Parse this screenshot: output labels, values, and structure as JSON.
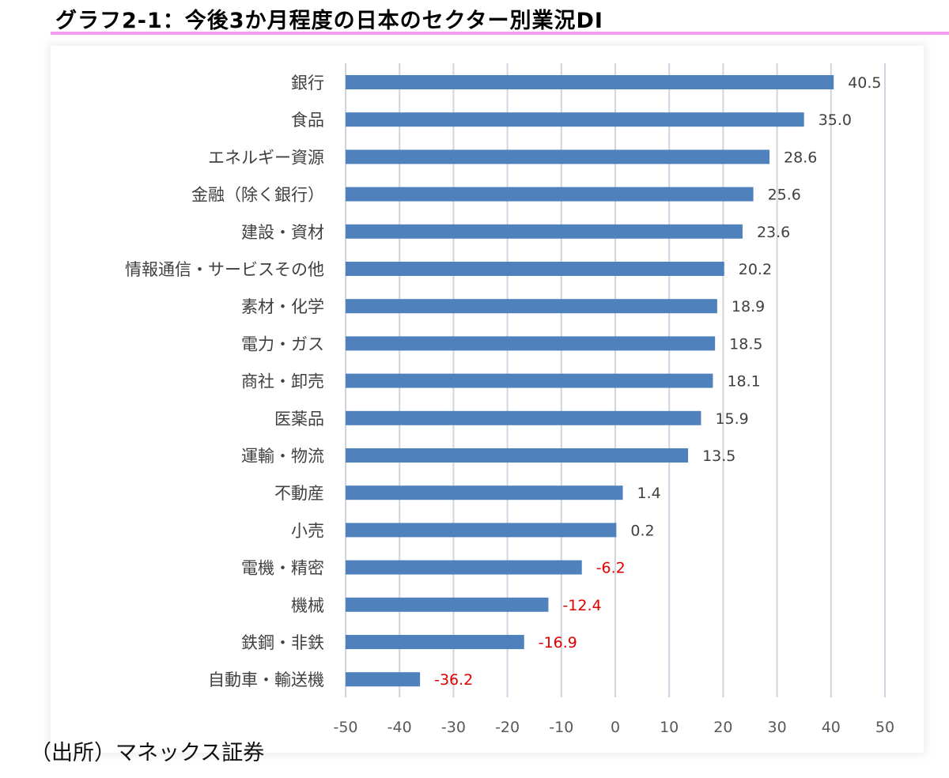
{
  "title": "グラフ2-1：今後3か月程度の日本のセクター別業況DI",
  "source": "（出所）マネックス証券",
  "colors": {
    "bar": "#4f81bd",
    "positive_label": "#404040",
    "negative_label": "#e00000",
    "grid": "#d0d4de",
    "title_rule": "#f49cf0"
  },
  "chart_data": {
    "type": "bar",
    "orientation": "horizontal",
    "title": "",
    "xlabel": "",
    "ylabel": "",
    "xlim": [
      -50,
      50
    ],
    "ticks": [
      "-50",
      "-40",
      "-30",
      "-20",
      "-10",
      "0",
      "10",
      "20",
      "30",
      "40",
      "50"
    ],
    "tick_values": [
      -50,
      -40,
      -30,
      -20,
      -10,
      0,
      10,
      20,
      30,
      40,
      50
    ],
    "grid": "vertical",
    "legend": "none",
    "categories": [
      "銀行",
      "食品",
      "エネルギー資源",
      "金融（除く銀行）",
      "建設・資材",
      "情報通信・サービスその他",
      "素材・化学",
      "電力・ガス",
      "商社・卸売",
      "医薬品",
      "運輸・物流",
      "不動産",
      "小売",
      "電機・精密",
      "機械",
      "鉄鋼・非鉄",
      "自動車・輸送機"
    ],
    "values": [
      40.5,
      35.0,
      28.6,
      25.6,
      23.6,
      20.2,
      18.9,
      18.5,
      18.1,
      15.9,
      13.5,
      1.4,
      0.2,
      -6.2,
      -12.4,
      -16.9,
      -36.2
    ],
    "value_labels": [
      "40.5",
      "35.0",
      "28.6",
      "25.6",
      "23.6",
      "20.2",
      "18.9",
      "18.5",
      "18.1",
      "15.9",
      "13.5",
      "1.4",
      "0.2",
      "-6.2",
      "-12.4",
      "-16.9",
      "-36.2"
    ]
  }
}
